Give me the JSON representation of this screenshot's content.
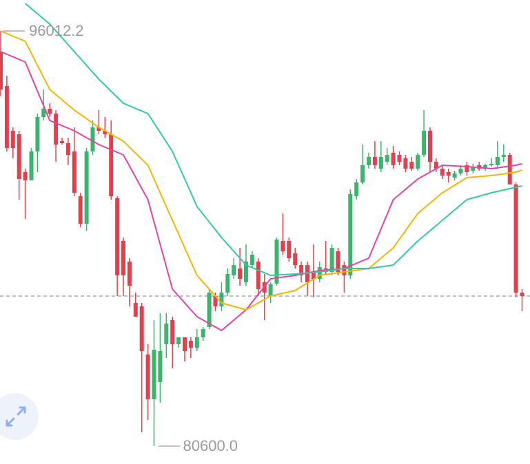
{
  "chart_data": {
    "type": "candlestick",
    "ylim": [
      79935,
      97162
    ],
    "up_color": "#3cb46e",
    "down_color": "#e0414f",
    "open": [
      95245,
      93967,
      92306,
      92178,
      90772,
      90465,
      91539,
      92817,
      93124,
      92945,
      91922,
      91846,
      91539,
      89877,
      88855,
      91539,
      92433,
      92306,
      92178,
      89801,
      88216,
      87449,
      85916,
      85788,
      83999,
      82337,
      82976,
      84382,
      85277,
      84382,
      84638,
      84510,
      84254,
      84638,
      85021,
      86171,
      85788,
      86299,
      86938,
      87194,
      86682,
      87321,
      87449,
      86682,
      86171,
      86631,
      88216,
      88216,
      87756,
      87321,
      87321,
      87066,
      86810,
      87194,
      87066,
      87833,
      87321,
      86938,
      89877,
      90389,
      91028,
      91334,
      90900,
      91155,
      91488,
      91411,
      91283,
      91155,
      90900,
      91411,
      92306,
      91155,
      90900,
      90772,
      90568,
      90721,
      91028,
      90823,
      91028,
      90900,
      91028,
      91028,
      91334,
      91411,
      90312,
      86299
    ],
    "close": [
      93839,
      91667,
      91667,
      90516,
      90465,
      91539,
      92817,
      93124,
      92945,
      91794,
      91846,
      91411,
      90005,
      88855,
      91539,
      92433,
      92306,
      92178,
      89877,
      86938,
      86938,
      86555,
      85404,
      84126,
      82337,
      84178,
      84126,
      85149,
      84382,
      84638,
      84126,
      84254,
      84638,
      84944,
      86299,
      85788,
      86299,
      86989,
      87321,
      86810,
      87449,
      87705,
      86427,
      86299,
      86606,
      88267,
      87833,
      87577,
      87321,
      86938,
      86682,
      86810,
      87245,
      87066,
      87960,
      87066,
      86938,
      89954,
      90389,
      91028,
      91334,
      91028,
      91334,
      91411,
      91028,
      91155,
      90900,
      90900,
      91411,
      92306,
      91155,
      90900,
      90644,
      90644,
      90721,
      90900,
      90772,
      90976,
      90900,
      91028,
      91079,
      91334,
      91411,
      90312,
      86299,
      86171
    ],
    "high": [
      96012.2,
      94350,
      92433,
      92306,
      90900,
      91667,
      92945,
      93839,
      93328,
      93072,
      92050,
      92050,
      92433,
      90005,
      91667,
      92689,
      93072,
      92817,
      92689,
      89877,
      88344,
      87577,
      86299,
      85916,
      84382,
      85277,
      85532,
      85532,
      85404,
      84638,
      84638,
      84638,
      84944,
      85021,
      86427,
      86299,
      86682,
      87194,
      87577,
      87960,
      88088,
      87833,
      87577,
      86989,
      86682,
      88344,
      89238,
      88344,
      87960,
      87449,
      87449,
      88088,
      87449,
      88216,
      88088,
      87960,
      87449,
      90133,
      90516,
      91794,
      91488,
      91922,
      91922,
      91667,
      91743,
      91539,
      91411,
      91334,
      91488,
      93072,
      92433,
      91283,
      91028,
      90900,
      90823,
      91028,
      91155,
      91079,
      91155,
      91079,
      91283,
      91922,
      91794,
      91488,
      90389,
      86427
    ],
    "low": [
      93584,
      91539,
      91283,
      89750,
      89034,
      90465,
      90772,
      92689,
      92817,
      91155,
      91794,
      91028,
      89877,
      88727,
      88599,
      91411,
      92178,
      92050,
      89750,
      86171,
      86171,
      85788,
      85404,
      81110,
      81570,
      {
        "value": 80600,
        "label": "80600.0"
      },
      82209,
      83871,
      83487,
      84254,
      83743,
      83871,
      84126,
      84510,
      84944,
      85609,
      85609,
      86171,
      86810,
      86555,
      86555,
      87194,
      86171,
      85277,
      85916,
      86555,
      87705,
      87449,
      87194,
      86682,
      86171,
      86120,
      86682,
      86938,
      86938,
      86938,
      86299,
      86810,
      89750,
      90312,
      90900,
      90900,
      90772,
      91028,
      90900,
      91028,
      90772,
      90823,
      90823,
      91334,
      90772,
      90772,
      90516,
      90389,
      90465,
      90644,
      90644,
      90721,
      90823,
      90823,
      90976,
      90900,
      91155,
      90312,
      86120,
      85609
    ],
    "series": [
      {
        "color": "#e244a6",
        "x": [
          0,
          4,
          8,
          12,
          16,
          20,
          24,
          28,
          32,
          36,
          40,
          44,
          48,
          52,
          56,
          60,
          64,
          68,
          72,
          76,
          80,
          84,
          85
        ],
        "values": [
          95245,
          94862,
          92689,
          92306,
          91794,
          91411,
          89750,
          86427,
          85404,
          84893,
          85660,
          86810,
          86938,
          87117,
          87194,
          87577,
          89750,
          90516,
          91028,
          90976,
          90900,
          91028,
          91079
        ]
      },
      {
        "color": "#f2b705",
        "x": [
          0,
          4,
          8,
          12,
          16,
          20,
          24,
          28,
          32,
          36,
          40,
          44,
          48,
          52,
          56,
          60,
          64,
          68,
          72,
          76,
          80,
          84,
          85
        ],
        "values": [
          96012,
          95628,
          93839,
          93072,
          92433,
          91922,
          91028,
          88983,
          86938,
          85916,
          85660,
          86171,
          86376,
          86938,
          87066,
          87194,
          87960,
          89238,
          90005,
          90568,
          90644,
          90772,
          90849
        ]
      },
      {
        "color": "#34c9a2",
        "x": [
          4,
          8,
          12,
          16,
          20,
          24,
          28,
          32,
          36,
          40,
          44,
          48,
          52,
          56,
          60,
          64,
          68,
          72,
          76,
          80,
          84,
          85
        ],
        "values": [
          97034,
          96267,
          95245,
          94223,
          93328,
          92945,
          91539,
          89494,
          88344,
          87321,
          86938,
          86989,
          87066,
          87194,
          87194,
          87321,
          88216,
          88983,
          89750,
          90005,
          90210,
          90261
        ]
      }
    ]
  }
}
